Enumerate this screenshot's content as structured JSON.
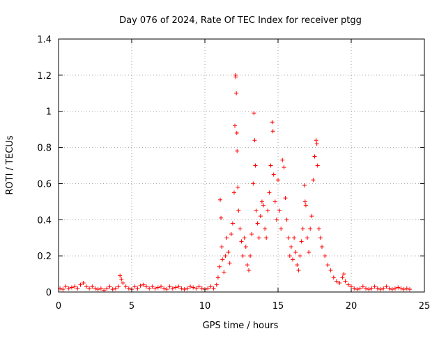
{
  "chart_data": {
    "type": "scatter",
    "title": "Day 076 of 2024, Rate Of TEC Index for receiver ptgg",
    "xlabel": "GPS time / hours",
    "ylabel": "ROTI / TECUs",
    "xlim": [
      0,
      25
    ],
    "ylim": [
      0,
      1.4
    ],
    "xticks": [
      "0",
      "5",
      "10",
      "15",
      "20",
      "25"
    ],
    "yticks": [
      "0",
      "0.2",
      "0.4",
      "0.6",
      "0.8",
      "1",
      "1.2",
      "1.4"
    ],
    "grid": true,
    "marker": "+",
    "color": "#ff0000",
    "series": [
      {
        "name": "",
        "points": [
          [
            0.1,
            0.02
          ],
          [
            0.3,
            0.015
          ],
          [
            0.5,
            0.03
          ],
          [
            0.7,
            0.02
          ],
          [
            0.9,
            0.025
          ],
          [
            1.1,
            0.03
          ],
          [
            1.3,
            0.02
          ],
          [
            1.5,
            0.04
          ],
          [
            1.7,
            0.05
          ],
          [
            1.9,
            0.03
          ],
          [
            2.1,
            0.02
          ],
          [
            2.3,
            0.03
          ],
          [
            2.5,
            0.02
          ],
          [
            2.7,
            0.015
          ],
          [
            2.9,
            0.02
          ],
          [
            3.1,
            0.01
          ],
          [
            3.3,
            0.02
          ],
          [
            3.5,
            0.03
          ],
          [
            3.7,
            0.015
          ],
          [
            3.9,
            0.02
          ],
          [
            4.1,
            0.03
          ],
          [
            4.2,
            0.09
          ],
          [
            4.3,
            0.07
          ],
          [
            4.4,
            0.05
          ],
          [
            4.6,
            0.03
          ],
          [
            4.8,
            0.02
          ],
          [
            5.0,
            0.015
          ],
          [
            5.2,
            0.03
          ],
          [
            5.4,
            0.02
          ],
          [
            5.6,
            0.035
          ],
          [
            5.8,
            0.04
          ],
          [
            6.0,
            0.03
          ],
          [
            6.2,
            0.02
          ],
          [
            6.4,
            0.03
          ],
          [
            6.6,
            0.02
          ],
          [
            6.8,
            0.025
          ],
          [
            7.0,
            0.03
          ],
          [
            7.2,
            0.02
          ],
          [
            7.4,
            0.015
          ],
          [
            7.6,
            0.03
          ],
          [
            7.8,
            0.02
          ],
          [
            8.0,
            0.025
          ],
          [
            8.2,
            0.03
          ],
          [
            8.4,
            0.02
          ],
          [
            8.6,
            0.015
          ],
          [
            8.8,
            0.02
          ],
          [
            9.0,
            0.03
          ],
          [
            9.2,
            0.025
          ],
          [
            9.4,
            0.02
          ],
          [
            9.6,
            0.03
          ],
          [
            9.8,
            0.02
          ],
          [
            10.0,
            0.015
          ],
          [
            10.2,
            0.02
          ],
          [
            10.4,
            0.03
          ],
          [
            10.6,
            0.02
          ],
          [
            10.8,
            0.04
          ],
          [
            10.9,
            0.08
          ],
          [
            11.0,
            0.14
          ],
          [
            11.05,
            0.51
          ],
          [
            11.1,
            0.41
          ],
          [
            11.15,
            0.25
          ],
          [
            11.2,
            0.18
          ],
          [
            11.3,
            0.11
          ],
          [
            11.4,
            0.2
          ],
          [
            11.5,
            0.3
          ],
          [
            11.6,
            0.22
          ],
          [
            11.7,
            0.16
          ],
          [
            11.8,
            0.32
          ],
          [
            11.9,
            0.38
          ],
          [
            12.0,
            0.55
          ],
          [
            12.05,
            0.92
          ],
          [
            12.1,
            1.2
          ],
          [
            12.12,
            1.19
          ],
          [
            12.15,
            1.1
          ],
          [
            12.18,
            0.88
          ],
          [
            12.2,
            0.78
          ],
          [
            12.25,
            0.58
          ],
          [
            12.3,
            0.45
          ],
          [
            12.4,
            0.35
          ],
          [
            12.5,
            0.28
          ],
          [
            12.6,
            0.2
          ],
          [
            12.7,
            0.3
          ],
          [
            12.8,
            0.25
          ],
          [
            12.9,
            0.15
          ],
          [
            13.0,
            0.12
          ],
          [
            13.1,
            0.2
          ],
          [
            13.2,
            0.32
          ],
          [
            13.3,
            0.6
          ],
          [
            13.35,
            0.99
          ],
          [
            13.4,
            0.84
          ],
          [
            13.45,
            0.7
          ],
          [
            13.5,
            0.45
          ],
          [
            13.6,
            0.38
          ],
          [
            13.7,
            0.3
          ],
          [
            13.8,
            0.42
          ],
          [
            13.9,
            0.5
          ],
          [
            14.0,
            0.48
          ],
          [
            14.1,
            0.35
          ],
          [
            14.2,
            0.3
          ],
          [
            14.3,
            0.45
          ],
          [
            14.4,
            0.55
          ],
          [
            14.5,
            0.7
          ],
          [
            14.6,
            0.94
          ],
          [
            14.65,
            0.89
          ],
          [
            14.7,
            0.65
          ],
          [
            14.8,
            0.5
          ],
          [
            14.9,
            0.4
          ],
          [
            15.0,
            0.62
          ],
          [
            15.1,
            0.45
          ],
          [
            15.2,
            0.35
          ],
          [
            15.3,
            0.73
          ],
          [
            15.4,
            0.69
          ],
          [
            15.5,
            0.52
          ],
          [
            15.6,
            0.4
          ],
          [
            15.7,
            0.3
          ],
          [
            15.8,
            0.2
          ],
          [
            15.9,
            0.25
          ],
          [
            16.0,
            0.18
          ],
          [
            16.1,
            0.3
          ],
          [
            16.2,
            0.22
          ],
          [
            16.3,
            0.15
          ],
          [
            16.4,
            0.12
          ],
          [
            16.5,
            0.2
          ],
          [
            16.6,
            0.28
          ],
          [
            16.7,
            0.35
          ],
          [
            16.8,
            0.59
          ],
          [
            16.85,
            0.5
          ],
          [
            16.9,
            0.48
          ],
          [
            17.0,
            0.3
          ],
          [
            17.1,
            0.22
          ],
          [
            17.2,
            0.35
          ],
          [
            17.3,
            0.42
          ],
          [
            17.4,
            0.62
          ],
          [
            17.5,
            0.75
          ],
          [
            17.6,
            0.84
          ],
          [
            17.65,
            0.82
          ],
          [
            17.7,
            0.7
          ],
          [
            17.8,
            0.35
          ],
          [
            17.9,
            0.3
          ],
          [
            18.0,
            0.25
          ],
          [
            18.2,
            0.2
          ],
          [
            18.4,
            0.15
          ],
          [
            18.6,
            0.12
          ],
          [
            18.8,
            0.08
          ],
          [
            19.0,
            0.06
          ],
          [
            19.2,
            0.05
          ],
          [
            19.4,
            0.08
          ],
          [
            19.5,
            0.1
          ],
          [
            19.6,
            0.06
          ],
          [
            19.8,
            0.04
          ],
          [
            20.0,
            0.03
          ],
          [
            20.2,
            0.02
          ],
          [
            20.4,
            0.015
          ],
          [
            20.6,
            0.02
          ],
          [
            20.8,
            0.03
          ],
          [
            21.0,
            0.02
          ],
          [
            21.2,
            0.015
          ],
          [
            21.4,
            0.02
          ],
          [
            21.6,
            0.03
          ],
          [
            21.8,
            0.02
          ],
          [
            22.0,
            0.015
          ],
          [
            22.2,
            0.02
          ],
          [
            22.4,
            0.03
          ],
          [
            22.6,
            0.02
          ],
          [
            22.8,
            0.015
          ],
          [
            23.0,
            0.02
          ],
          [
            23.2,
            0.025
          ],
          [
            23.4,
            0.02
          ],
          [
            23.6,
            0.015
          ],
          [
            23.8,
            0.02
          ],
          [
            24.0,
            0.015
          ]
        ]
      }
    ]
  }
}
